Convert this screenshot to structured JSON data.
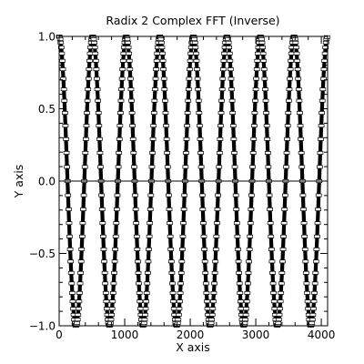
{
  "chart_data": {
    "type": "line",
    "title": "Radix 2 Complex FFT (Inverse)",
    "xlabel": "X axis",
    "ylabel": "Y axis",
    "xlim": [
      0,
      4096
    ],
    "ylim": [
      -1.0,
      1.0
    ],
    "grid": false,
    "legend": "none",
    "marker": "square",
    "x_ticks": [
      0,
      1000,
      2000,
      3000,
      4000
    ],
    "x_tick_labels": [
      "0",
      "1000",
      "2000",
      "3000",
      "4000"
    ],
    "y_ticks": [
      -1.0,
      -0.5,
      0.0,
      0.5,
      1.0
    ],
    "y_tick_labels": [
      "−1.0",
      "−0.5",
      "0.0",
      "0.5",
      "1.0"
    ],
    "series": [
      {
        "function": "cos",
        "amplitude": 1.0,
        "cycles": 8,
        "period": 512,
        "x_start": 0,
        "x_end": 4095,
        "samples": 4096,
        "color": "#000000"
      }
    ],
    "zero_line": true
  }
}
